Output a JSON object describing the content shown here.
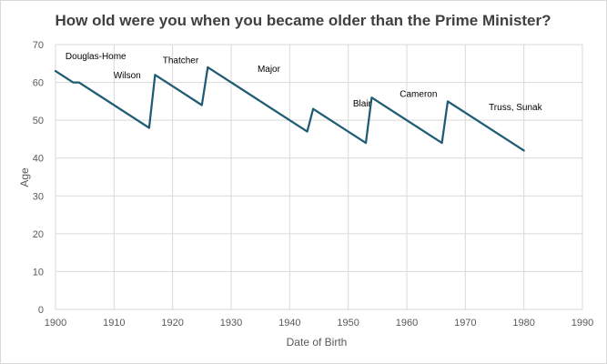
{
  "chart_data": {
    "type": "line",
    "title": "How old were you when you became older than the Prime Minister?",
    "xlabel": "Date of Birth",
    "ylabel": "Age",
    "xlim": [
      1900,
      1990
    ],
    "ylim": [
      0,
      70
    ],
    "xticks": [
      1900,
      1910,
      1920,
      1930,
      1940,
      1950,
      1960,
      1970,
      1980,
      1990
    ],
    "yticks": [
      0,
      10,
      20,
      30,
      40,
      50,
      60,
      70
    ],
    "grid": "vertical and horizontal",
    "line_color": "#1f5c74",
    "series": [
      {
        "values": [
          {
            "x": 1900,
            "y": 63
          },
          {
            "x": 1903,
            "y": 60
          },
          {
            "x": 1904,
            "y": 60
          },
          {
            "x": 1907,
            "y": 57
          },
          {
            "x": 1916,
            "y": 48
          },
          {
            "x": 1917,
            "y": 62
          },
          {
            "x": 1920,
            "y": 59
          },
          {
            "x": 1925,
            "y": 54
          },
          {
            "x": 1925.8,
            "y": 62
          },
          {
            "x": 1926,
            "y": 64
          },
          {
            "x": 1943,
            "y": 47
          },
          {
            "x": 1944,
            "y": 53
          },
          {
            "x": 1953,
            "y": 44
          },
          {
            "x": 1954,
            "y": 56
          },
          {
            "x": 1966,
            "y": 44
          },
          {
            "x": 1967,
            "y": 55
          },
          {
            "x": 1980,
            "y": 42
          }
        ]
      }
    ],
    "annotations": [
      {
        "text": "Douglas-Home",
        "x": 1901.7,
        "y": 66.2
      },
      {
        "text": "Wilson",
        "x": 1909.9,
        "y": 61.1
      },
      {
        "text": "Thatcher",
        "x": 1918.3,
        "y": 65.1
      },
      {
        "text": "Major",
        "x": 1934.5,
        "y": 62.8
      },
      {
        "text": "Blair",
        "x": 1950.8,
        "y": 53.7
      },
      {
        "text": "Cameron",
        "x": 1958.8,
        "y": 56.2
      },
      {
        "text": "Truss, Sunak",
        "x": 1974.0,
        "y": 52.7
      }
    ]
  }
}
